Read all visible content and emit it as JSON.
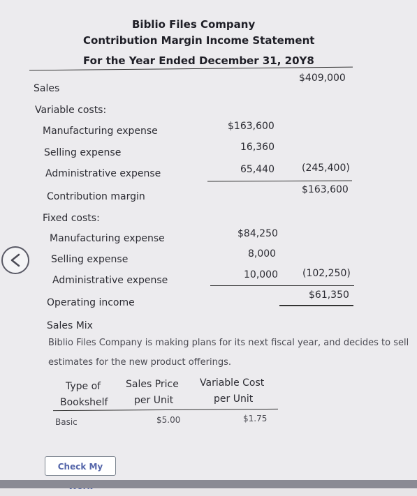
{
  "statement": {
    "company": "Biblio Files Company",
    "title": "Contribution Margin Income Statement",
    "period": "For the Year Ended December 31, 20Y8",
    "sales_label": "Sales",
    "sales_value": "$409,000",
    "variable_costs_label": "Variable costs:",
    "variable": [
      {
        "label": "Manufacturing expense",
        "value": "$163,600"
      },
      {
        "label": "Selling expense",
        "value": "16,360"
      },
      {
        "label": "Administrative expense",
        "value": "65,440"
      }
    ],
    "variable_total": "(245,400)",
    "contribution_margin_label": "Contribution margin",
    "contribution_margin_value": "$163,600",
    "fixed_costs_label": "Fixed costs:",
    "fixed": [
      {
        "label": "Manufacturing expense",
        "value": "$84,250"
      },
      {
        "label": "Selling expense",
        "value": "8,000"
      },
      {
        "label": "Administrative expense",
        "value": "10,000"
      }
    ],
    "fixed_total": "(102,250)",
    "operating_income_label": "Operating income",
    "operating_income_value": "$61,350"
  },
  "sales_mix": {
    "heading": "Sales Mix",
    "intro_line1": "Biblio Files Company is making plans for its next fiscal year, and decides to sell",
    "intro_line2": "estimates for the new product offerings.",
    "headers": {
      "type_line1": "Type of",
      "type_line2": "Bookshelf",
      "price_line1": "Sales Price",
      "price_line2": "per Unit",
      "cost_line1": "Variable Cost",
      "cost_line2": "per Unit"
    },
    "rows": [
      {
        "type": "Basic",
        "price": "$5.00",
        "cost": "$1.75"
      }
    ]
  },
  "buttons": {
    "check_my_work": "Check My Work"
  },
  "icons": {
    "back": "chevron-left-icon"
  }
}
